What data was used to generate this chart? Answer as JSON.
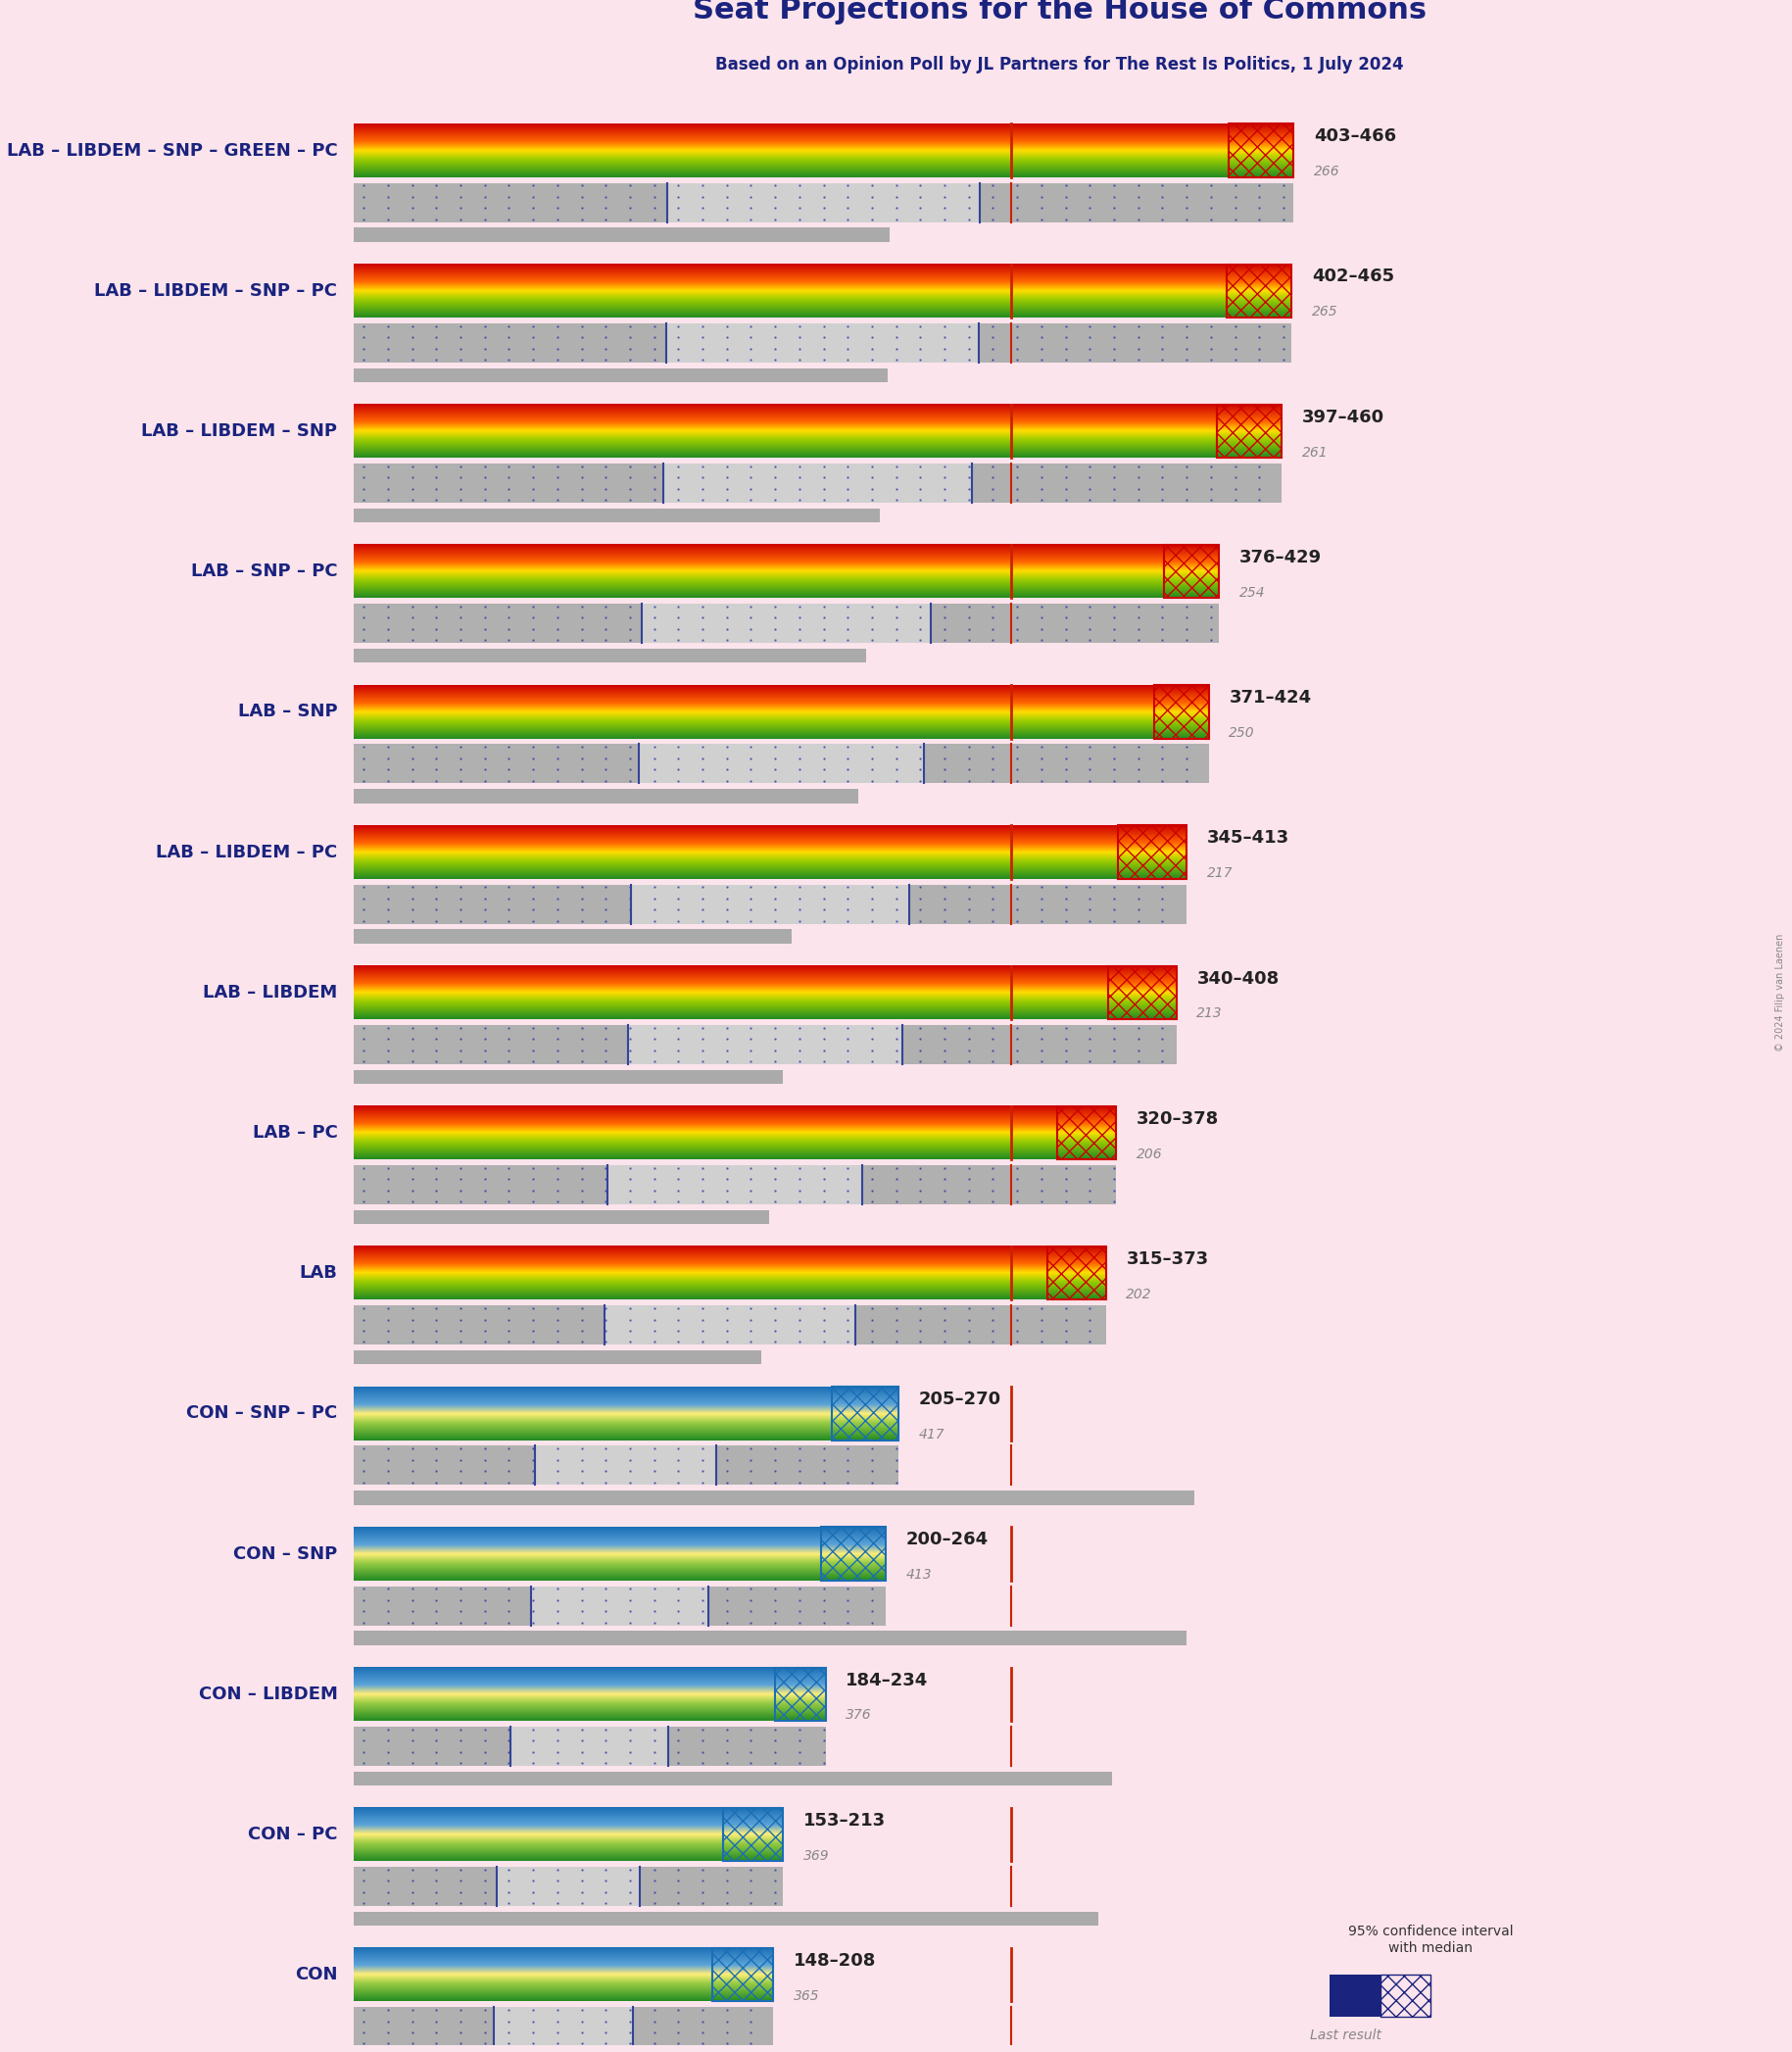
{
  "title": "Seat Projections for the House of Commons",
  "subtitle": "Based on an Opinion Poll by JL Partners for The Rest Is Politics, 1 July 2024",
  "background_color": "#fce4ec",
  "bar_background": "#f0e0e8",
  "title_color": "#1a237e",
  "subtitle_color": "#1a237e",
  "copyright": "© 2024 Filip van Laenen",
  "majority_line": 326,
  "coalitions": [
    {
      "label": "LAB – LIBDEM – SNP – GREEN – PC",
      "min": 403,
      "max": 466,
      "median": 434,
      "last": 266,
      "type": "lab"
    },
    {
      "label": "LAB – LIBDEM – SNP – PC",
      "min": 402,
      "max": 465,
      "median": 433,
      "last": 265,
      "type": "lab"
    },
    {
      "label": "LAB – LIBDEM – SNP",
      "min": 397,
      "max": 460,
      "median": 428,
      "last": 261,
      "type": "lab"
    },
    {
      "label": "LAB – SNP – PC",
      "min": 376,
      "max": 429,
      "median": 402,
      "last": 254,
      "type": "lab"
    },
    {
      "label": "LAB – SNP",
      "min": 371,
      "max": 424,
      "median": 397,
      "last": 250,
      "type": "lab"
    },
    {
      "label": "LAB – LIBDEM – PC",
      "min": 345,
      "max": 413,
      "median": 379,
      "last": 217,
      "type": "lab"
    },
    {
      "label": "LAB – LIBDEM",
      "min": 340,
      "max": 408,
      "median": 374,
      "last": 213,
      "type": "lab"
    },
    {
      "label": "LAB – PC",
      "min": 320,
      "max": 378,
      "median": 349,
      "last": 206,
      "type": "lab"
    },
    {
      "label": "LAB",
      "min": 315,
      "max": 373,
      "median": 344,
      "last": 202,
      "type": "lab"
    },
    {
      "label": "CON – SNP – PC",
      "min": 205,
      "max": 270,
      "median": 237,
      "last": 417,
      "type": "con"
    },
    {
      "label": "CON – SNP",
      "min": 200,
      "max": 264,
      "median": 232,
      "last": 413,
      "type": "con"
    },
    {
      "label": "CON – LIBDEM",
      "min": 184,
      "max": 234,
      "median": 209,
      "last": 376,
      "type": "con"
    },
    {
      "label": "CON – PC",
      "min": 153,
      "max": 213,
      "median": 183,
      "last": 369,
      "type": "con"
    },
    {
      "label": "CON",
      "min": 148,
      "max": 208,
      "median": 178,
      "last": 365,
      "type": "con"
    }
  ],
  "x_max": 700,
  "label_range_color": "#333333",
  "label_last_color": "#9e9e9e",
  "range_label_lab": "#1a1a1a",
  "range_label_con": "#1a1a1a"
}
